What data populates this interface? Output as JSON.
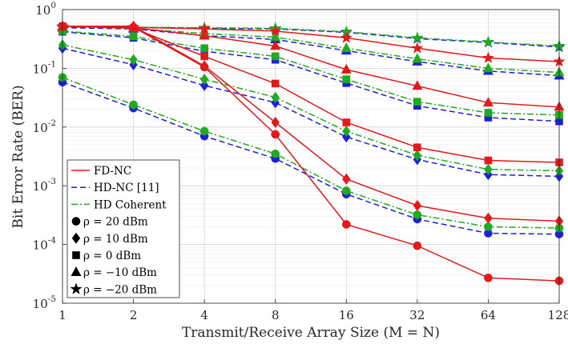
{
  "chart_data": {
    "type": "line",
    "xlabel": "Transmit/Receive Array Size (M = N)",
    "ylabel": "Bit Error Rate (BER)",
    "xscale": "log2",
    "yscale": "log",
    "x": [
      1,
      2,
      4,
      8,
      16,
      32,
      64,
      128
    ],
    "x_tick_labels": [
      "1",
      "2",
      "4",
      "8",
      "16",
      "32",
      "64",
      "128"
    ],
    "y_tick_labels": [
      {
        "base": "10",
        "exp": "0"
      },
      {
        "base": "10",
        "exp": "-1"
      },
      {
        "base": "10",
        "exp": "-2"
      },
      {
        "base": "10",
        "exp": "-3"
      },
      {
        "base": "10",
        "exp": "-4"
      },
      {
        "base": "10",
        "exp": "-5"
      }
    ],
    "ylim": [
      1e-05,
      1
    ],
    "grid": true,
    "legend_position": "bottom-left",
    "legend": [
      {
        "label": "FD-NC",
        "kind": "line",
        "scheme": "fdnc"
      },
      {
        "label": "HD-NC [11]",
        "kind": "line",
        "scheme": "hdnc"
      },
      {
        "label": "HD Coherent",
        "kind": "line",
        "scheme": "hdc"
      },
      {
        "label": "ρ = 20 dBm",
        "kind": "marker",
        "marker": "circle"
      },
      {
        "label": "ρ = 10 dBm",
        "kind": "marker",
        "marker": "diamond"
      },
      {
        "label": "ρ = 0 dBm",
        "kind": "marker",
        "marker": "square"
      },
      {
        "label": "ρ = −10 dBm",
        "kind": "marker",
        "marker": "triangle"
      },
      {
        "label": "ρ = −20 dBm",
        "kind": "marker",
        "marker": "star"
      }
    ],
    "schemes": {
      "fdnc": {
        "color": "#e31a1c",
        "dash": ""
      },
      "hdnc": {
        "color": "#1f1fd6",
        "dash": "7,4"
      },
      "hdc": {
        "color": "#1faa1f",
        "dash": "8,3,2,3"
      }
    },
    "series": [
      {
        "scheme": "fdnc",
        "marker": "circle",
        "values": [
          0.52,
          0.5,
          0.105,
          0.0075,
          0.00022,
          9.5e-05,
          2.7e-05,
          2.4e-05
        ]
      },
      {
        "scheme": "fdnc",
        "marker": "diamond",
        "values": [
          0.52,
          0.52,
          0.11,
          0.012,
          0.0013,
          0.00046,
          0.00028,
          0.00025
        ]
      },
      {
        "scheme": "fdnc",
        "marker": "square",
        "values": [
          0.52,
          0.48,
          0.16,
          0.055,
          0.012,
          0.0045,
          0.0027,
          0.0025
        ]
      },
      {
        "scheme": "fdnc",
        "marker": "triangle",
        "values": [
          0.52,
          0.49,
          0.36,
          0.24,
          0.095,
          0.05,
          0.026,
          0.022
        ]
      },
      {
        "scheme": "fdnc",
        "marker": "star",
        "values": [
          0.52,
          0.5,
          0.47,
          0.43,
          0.33,
          0.22,
          0.15,
          0.13
        ]
      },
      {
        "scheme": "hdnc",
        "marker": "circle",
        "values": [
          0.058,
          0.021,
          0.007,
          0.0029,
          0.00072,
          0.00027,
          0.000155,
          0.00015
        ]
      },
      {
        "scheme": "hdnc",
        "marker": "diamond",
        "values": [
          0.22,
          0.115,
          0.051,
          0.026,
          0.0068,
          0.0028,
          0.00155,
          0.00145
        ]
      },
      {
        "scheme": "hdnc",
        "marker": "square",
        "values": [
          0.42,
          0.33,
          0.195,
          0.14,
          0.056,
          0.023,
          0.0145,
          0.0125
        ]
      },
      {
        "scheme": "hdnc",
        "marker": "triangle",
        "values": [
          0.49,
          0.47,
          0.36,
          0.31,
          0.2,
          0.13,
          0.09,
          0.075
        ]
      },
      {
        "scheme": "hdnc",
        "marker": "star",
        "values": [
          0.5,
          0.5,
          0.48,
          0.47,
          0.41,
          0.32,
          0.275,
          0.23
        ]
      },
      {
        "scheme": "hdc",
        "marker": "circle",
        "values": [
          0.07,
          0.024,
          0.0085,
          0.0035,
          0.00082,
          0.00032,
          0.0002,
          0.00019
        ]
      },
      {
        "scheme": "hdc",
        "marker": "diamond",
        "values": [
          0.25,
          0.14,
          0.065,
          0.032,
          0.0085,
          0.0033,
          0.0019,
          0.0018
        ]
      },
      {
        "scheme": "hdc",
        "marker": "square",
        "values": [
          0.43,
          0.35,
          0.22,
          0.16,
          0.065,
          0.027,
          0.0175,
          0.016
        ]
      },
      {
        "scheme": "hdc",
        "marker": "triangle",
        "values": [
          0.51,
          0.48,
          0.39,
          0.34,
          0.22,
          0.145,
          0.1,
          0.085
        ]
      },
      {
        "scheme": "hdc",
        "marker": "star",
        "values": [
          0.51,
          0.5,
          0.49,
          0.48,
          0.42,
          0.33,
          0.28,
          0.24
        ]
      }
    ]
  }
}
